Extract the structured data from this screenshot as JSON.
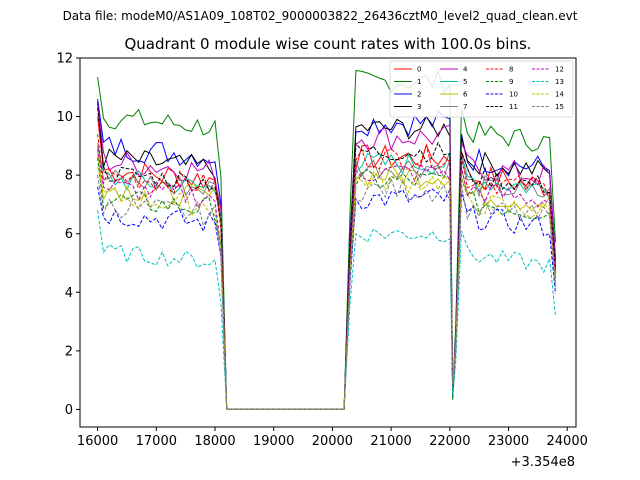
{
  "header": {
    "file_label": "Data file: modeM0/AS1A09_108T02_9000003822_26436cztM0_level2_quad_clean.evt"
  },
  "chart_data": {
    "type": "line",
    "title": "Quadrant 0 module wise count rates with 100.0s bins.",
    "xlabel": "",
    "ylabel": "",
    "x_offset_label": "+3.354e8",
    "xlim": [
      15700,
      24150
    ],
    "ylim": [
      -0.6,
      12
    ],
    "xticks": [
      16000,
      17000,
      18000,
      19000,
      20000,
      21000,
      22000,
      23000,
      24000
    ],
    "xtick_labels": [
      "16000",
      "17000",
      "18000",
      "19000",
      "20000",
      "21000",
      "22000",
      "23000",
      "24000"
    ],
    "yticks": [
      0,
      2,
      4,
      6,
      8,
      10,
      12
    ],
    "ytick_labels": [
      "0",
      "2",
      "4",
      "6",
      "8",
      "10",
      "12"
    ],
    "legend_position": "top-right",
    "legend_columns": 4,
    "segments": [
      {
        "start": 16000,
        "end": 18200,
        "step": 100
      },
      {
        "start": 20200,
        "end": 22000,
        "step": 100
      },
      {
        "start": 22100,
        "end": 23800,
        "step": 100
      }
    ],
    "series": [
      {
        "name": "0",
        "color": "#ff0000",
        "dash": "solid",
        "level1": 8.2,
        "level2": 8.6,
        "level3": 8.0,
        "start": 10.0,
        "noise": 0.45
      },
      {
        "name": "1",
        "color": "#008000",
        "dash": "solid",
        "level1": 10.0,
        "level2": 11.2,
        "level3": 9.5,
        "start": 11.35,
        "noise": 0.4
      },
      {
        "name": "2",
        "color": "#0000ff",
        "dash": "solid",
        "level1": 9.0,
        "level2": 9.8,
        "level3": 8.6,
        "start": 10.6,
        "noise": 0.45
      },
      {
        "name": "3",
        "color": "#000000",
        "dash": "solid",
        "level1": 8.6,
        "level2": 9.6,
        "level3": 8.5,
        "start": 10.5,
        "noise": 0.4
      },
      {
        "name": "4",
        "color": "#c000c0",
        "dash": "solid",
        "level1": 8.5,
        "level2": 9.3,
        "level3": 8.3,
        "start": 10.4,
        "noise": 0.45
      },
      {
        "name": "5",
        "color": "#00c0a0",
        "dash": "solid",
        "level1": 7.9,
        "level2": 8.4,
        "level3": 7.9,
        "start": 9.0,
        "noise": 0.4
      },
      {
        "name": "6",
        "color": "#c0c000",
        "dash": "solid",
        "level1": 7.6,
        "level2": 8.0,
        "level3": 7.4,
        "start": 8.8,
        "noise": 0.4
      },
      {
        "name": "7",
        "color": "#808080",
        "dash": "solid",
        "level1": 7.9,
        "level2": 8.3,
        "level3": 7.7,
        "start": 9.1,
        "noise": 0.4
      },
      {
        "name": "8",
        "color": "#ff0000",
        "dash": "dashed",
        "level1": 8.0,
        "level2": 8.6,
        "level3": 7.9,
        "start": 9.4,
        "noise": 0.4
      },
      {
        "name": "9",
        "color": "#008000",
        "dash": "dashed",
        "level1": 7.2,
        "level2": 7.8,
        "level3": 7.1,
        "start": 8.6,
        "noise": 0.4
      },
      {
        "name": "10",
        "color": "#0000ff",
        "dash": "dashed",
        "level1": 6.7,
        "level2": 7.2,
        "level3": 6.6,
        "start": 7.6,
        "noise": 0.4
      },
      {
        "name": "11",
        "color": "#000000",
        "dash": "dashed",
        "level1": 8.1,
        "level2": 8.8,
        "level3": 8.0,
        "start": 10.3,
        "noise": 0.35
      },
      {
        "name": "12",
        "color": "#c000c0",
        "dash": "dashed",
        "level1": 7.6,
        "level2": 8.1,
        "level3": 7.5,
        "start": 8.9,
        "noise": 0.4
      },
      {
        "name": "13",
        "color": "#00c0c0",
        "dash": "dashed",
        "level1": 5.4,
        "level2": 6.0,
        "level3": 5.3,
        "start": 6.8,
        "noise": 0.3
      },
      {
        "name": "14",
        "color": "#c0c000",
        "dash": "dashed",
        "level1": 7.3,
        "level2": 7.8,
        "level3": 7.1,
        "start": 8.3,
        "noise": 0.4
      },
      {
        "name": "15",
        "color": "#808080",
        "dash": "dashed",
        "level1": 7.0,
        "level2": 7.5,
        "level3": 6.9,
        "start": 8.0,
        "noise": 0.4
      }
    ]
  }
}
